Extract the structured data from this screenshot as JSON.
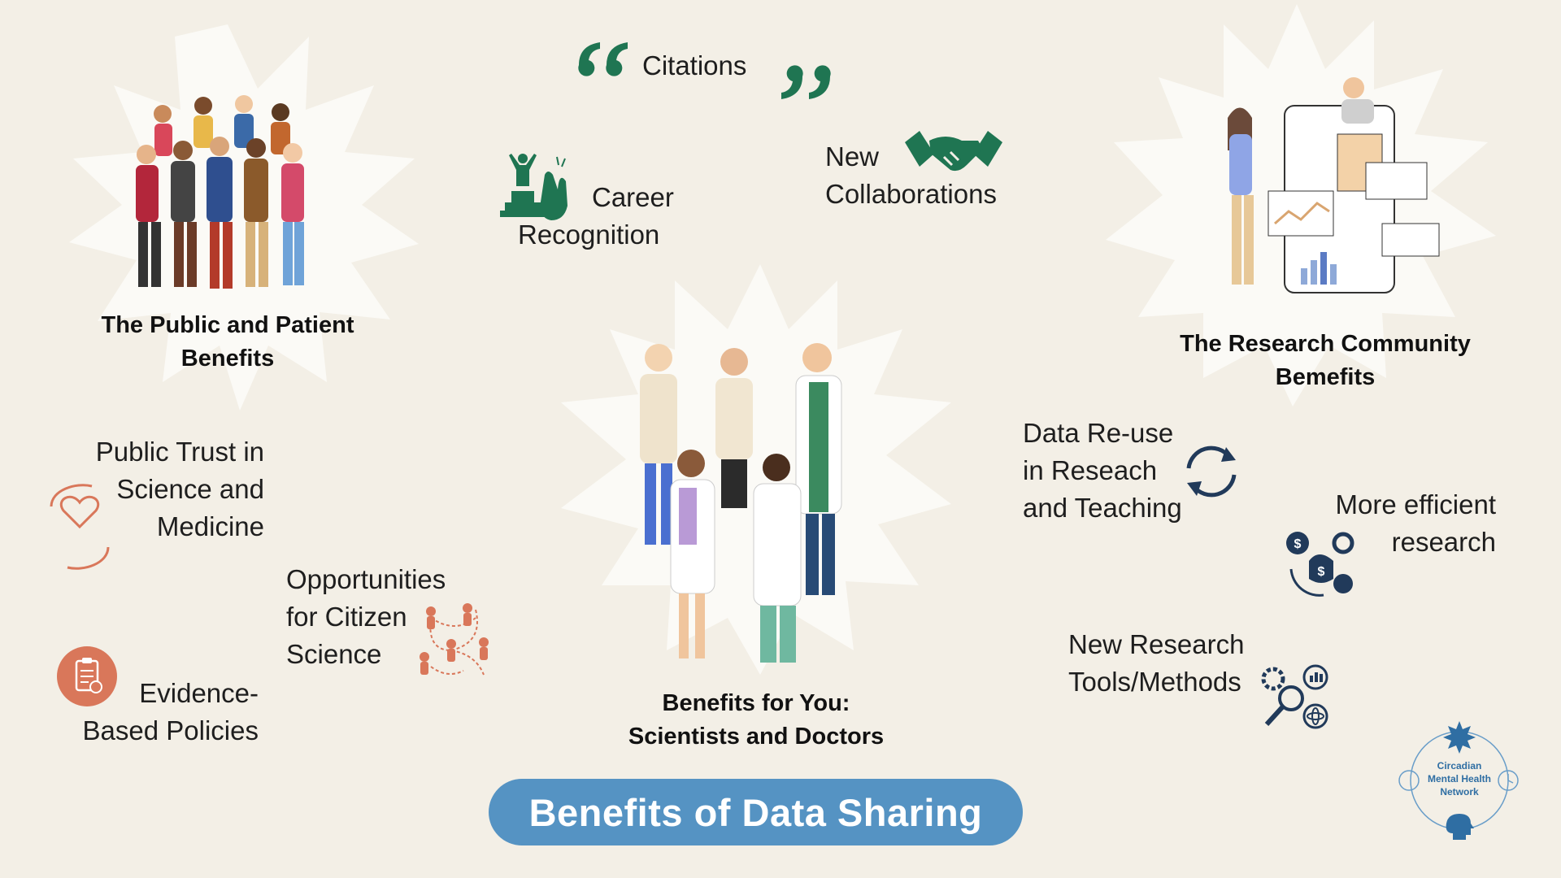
{
  "title": "Benefits of Data Sharing",
  "sections": {
    "public": {
      "heading": [
        "The Public and Patient",
        "Benefits"
      ],
      "items": [
        {
          "text": [
            "Public Trust in",
            "Science and",
            "Medicine"
          ],
          "icon": "caring-hands-heart-icon"
        },
        {
          "text": [
            "Opportunities",
            "for Citizen",
            "Science"
          ],
          "icon": "people-network-icon"
        },
        {
          "text": [
            "Evidence-",
            "Based Policies"
          ],
          "icon": "policy-clipboard-icon"
        }
      ],
      "illustration": "crowd-of-people-illustration"
    },
    "you": {
      "heading": [
        "Benefits for You:",
        "Scientists and Doctors"
      ],
      "items": [
        {
          "text": [
            "Citations"
          ],
          "icon": "quote-marks-icon"
        },
        {
          "text": [
            "Career",
            "Recognition"
          ],
          "icon": "podium-applause-icon"
        },
        {
          "text": [
            "New",
            "Collaborations"
          ],
          "icon": "handshake-icon"
        }
      ],
      "illustration": "scientists-and-doctors-illustration"
    },
    "research": {
      "heading": [
        "The Research Community",
        "Bemefits"
      ],
      "items": [
        {
          "text": [
            "Data Re-use",
            "in Reseach",
            "and Teaching"
          ],
          "icon": "refresh-arrows-icon"
        },
        {
          "text": [
            "More efficient",
            "research"
          ],
          "icon": "money-gear-clock-icon"
        },
        {
          "text": [
            "New Research",
            "Tools/Methods"
          ],
          "icon": "gears-magnifier-icon"
        }
      ],
      "illustration": "researchers-dashboard-illustration"
    }
  },
  "logo": {
    "lines": [
      "Circadian",
      "Mental Health",
      "Network"
    ]
  },
  "colors": {
    "background": "#f3efe6",
    "burst": "#fbfaf6",
    "pill": "#5593c3",
    "green": "#1f7552",
    "orange": "#d9775a",
    "navy": "#213a5a"
  }
}
